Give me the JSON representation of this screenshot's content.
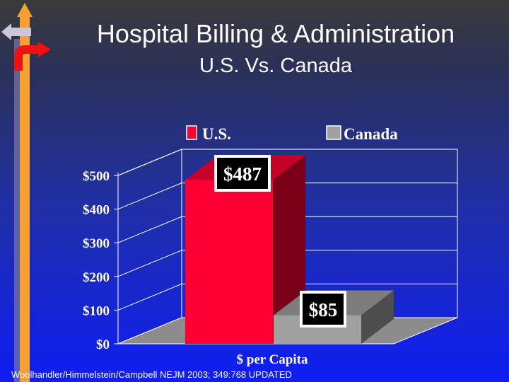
{
  "slide": {
    "title": "Hospital Billing & Administration",
    "subtitle": "U.S. Vs. Canada",
    "source": "Woolhandler/Himmelstein/Campbell NEJM 2003; 349:768 UPDATED"
  },
  "colors": {
    "us": "#ff0033",
    "canada": "#a0a0a0",
    "deco_orange": "#f5a030",
    "deco_red": "#ee1111"
  },
  "chart_data": {
    "type": "bar",
    "title": "",
    "categories": [
      "$ per Capita"
    ],
    "series": [
      {
        "name": "U.S.",
        "values": [
          487
        ],
        "label": "$487"
      },
      {
        "name": "Canada",
        "values": [
          85
        ],
        "label": "$85"
      }
    ],
    "xlabel": "$ per Capita",
    "ylabel": "",
    "ylim": [
      0,
      500
    ],
    "yticks": [
      0,
      100,
      200,
      300,
      400,
      500
    ],
    "ytick_labels": [
      "$0",
      "$100",
      "$200",
      "$300",
      "$400",
      "$500"
    ],
    "legend_position": "top",
    "grid": true
  }
}
